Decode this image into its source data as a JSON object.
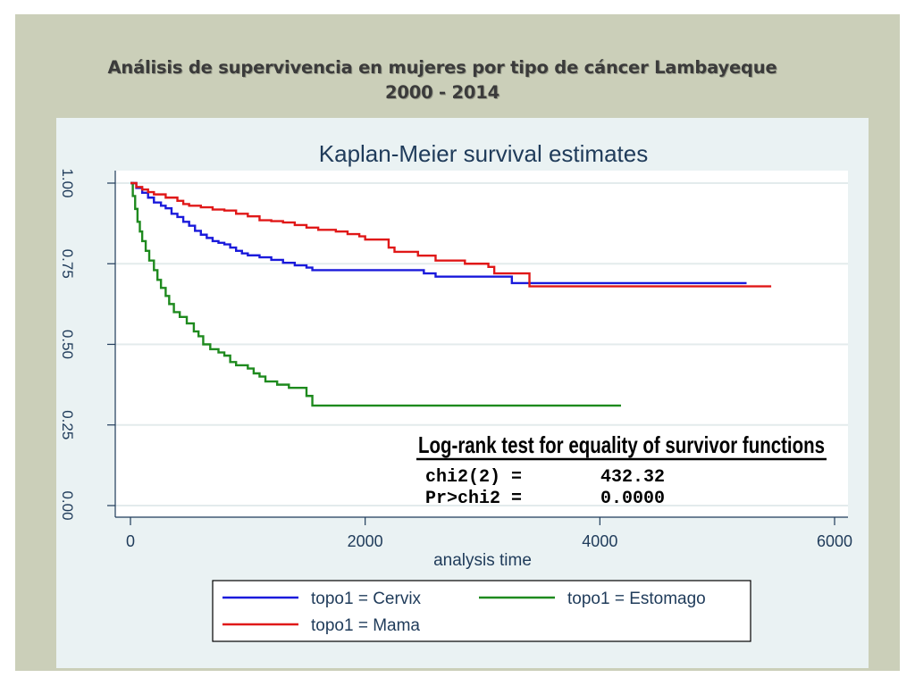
{
  "slide": {
    "title_line1": "Análisis de supervivencia en mujeres por tipo de cáncer Lambayeque",
    "title_line2": "2000 - 2014"
  },
  "chart_data": {
    "type": "line",
    "step": true,
    "title": "Kaplan-Meier survival estimates",
    "xlabel": "analysis time",
    "ylabel": "",
    "xlim": [
      0,
      6000
    ],
    "ylim": [
      0,
      1
    ],
    "xticks": [
      0,
      2000,
      4000,
      6000
    ],
    "yticks": [
      0,
      0.25,
      0.5,
      0.75,
      1
    ],
    "xtick_labels": [
      "0",
      "2000",
      "4000",
      "6000"
    ],
    "ytick_labels": [
      "0.00",
      "0.25",
      "0.50",
      "0.75",
      "1.00"
    ],
    "grid": true,
    "legend_position": "bottom",
    "series": [
      {
        "name": "topo1 = Cervix",
        "color": "#1a1adb",
        "points": [
          [
            0,
            1
          ],
          [
            50,
            0.985
          ],
          [
            100,
            0.97
          ],
          [
            150,
            0.955
          ],
          [
            200,
            0.94
          ],
          [
            260,
            0.93
          ],
          [
            300,
            0.922
          ],
          [
            350,
            0.905
          ],
          [
            400,
            0.895
          ],
          [
            450,
            0.88
          ],
          [
            500,
            0.868
          ],
          [
            550,
            0.852
          ],
          [
            600,
            0.84
          ],
          [
            650,
            0.83
          ],
          [
            700,
            0.82
          ],
          [
            750,
            0.815
          ],
          [
            800,
            0.81
          ],
          [
            850,
            0.8
          ],
          [
            900,
            0.79
          ],
          [
            950,
            0.782
          ],
          [
            1000,
            0.776
          ],
          [
            1100,
            0.77
          ],
          [
            1200,
            0.762
          ],
          [
            1300,
            0.753
          ],
          [
            1400,
            0.745
          ],
          [
            1500,
            0.738
          ],
          [
            1550,
            0.73
          ],
          [
            2000,
            0.73
          ],
          [
            2460,
            0.73
          ],
          [
            2500,
            0.72
          ],
          [
            2600,
            0.71
          ],
          [
            3240,
            0.71
          ],
          [
            3250,
            0.69
          ],
          [
            5250,
            0.69
          ]
        ]
      },
      {
        "name": "topo1 = Mama",
        "color": "#e01818",
        "points": [
          [
            0,
            1
          ],
          [
            50,
            0.988
          ],
          [
            100,
            0.98
          ],
          [
            150,
            0.972
          ],
          [
            200,
            0.965
          ],
          [
            300,
            0.955
          ],
          [
            400,
            0.945
          ],
          [
            450,
            0.935
          ],
          [
            500,
            0.93
          ],
          [
            600,
            0.925
          ],
          [
            700,
            0.918
          ],
          [
            800,
            0.915
          ],
          [
            900,
            0.905
          ],
          [
            1000,
            0.897
          ],
          [
            1100,
            0.885
          ],
          [
            1200,
            0.882
          ],
          [
            1300,
            0.878
          ],
          [
            1400,
            0.87
          ],
          [
            1500,
            0.862
          ],
          [
            1600,
            0.855
          ],
          [
            1750,
            0.85
          ],
          [
            1850,
            0.842
          ],
          [
            1950,
            0.835
          ],
          [
            2000,
            0.825
          ],
          [
            2200,
            0.8
          ],
          [
            2250,
            0.787
          ],
          [
            2450,
            0.775
          ],
          [
            2600,
            0.76
          ],
          [
            2850,
            0.75
          ],
          [
            3050,
            0.74
          ],
          [
            3100,
            0.72
          ],
          [
            3250,
            0.72
          ],
          [
            3350,
            0.72
          ],
          [
            3400,
            0.68
          ],
          [
            5460,
            0.68
          ]
        ]
      },
      {
        "name": "topo1 = Estomago",
        "color": "#1e8a1e",
        "points": [
          [
            0,
            1
          ],
          [
            20,
            0.96
          ],
          [
            40,
            0.92
          ],
          [
            60,
            0.88
          ],
          [
            80,
            0.85
          ],
          [
            100,
            0.82
          ],
          [
            130,
            0.79
          ],
          [
            160,
            0.76
          ],
          [
            200,
            0.73
          ],
          [
            230,
            0.7
          ],
          [
            260,
            0.675
          ],
          [
            300,
            0.65
          ],
          [
            330,
            0.625
          ],
          [
            370,
            0.6
          ],
          [
            420,
            0.585
          ],
          [
            480,
            0.565
          ],
          [
            540,
            0.54
          ],
          [
            580,
            0.525
          ],
          [
            620,
            0.5
          ],
          [
            680,
            0.485
          ],
          [
            750,
            0.475
          ],
          [
            800,
            0.465
          ],
          [
            850,
            0.445
          ],
          [
            900,
            0.435
          ],
          [
            1000,
            0.425
          ],
          [
            1050,
            0.41
          ],
          [
            1100,
            0.4
          ],
          [
            1150,
            0.385
          ],
          [
            1250,
            0.375
          ],
          [
            1350,
            0.365
          ],
          [
            1500,
            0.34
          ],
          [
            1550,
            0.31
          ],
          [
            4180,
            0.31
          ]
        ]
      }
    ],
    "annotation": {
      "heading": "Log-rank test for equality of survivor functions",
      "line1_label": "chi2(2) =",
      "line1_value": "432.32",
      "line2_label": "Pr>chi2 =",
      "line2_value": "0.0000"
    }
  }
}
